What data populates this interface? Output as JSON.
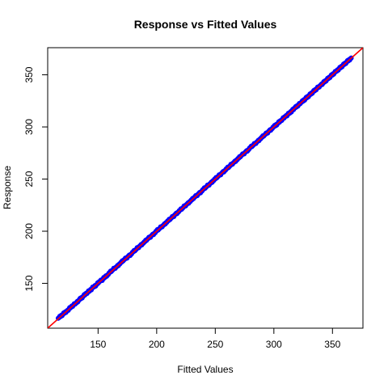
{
  "chart_data": {
    "type": "scatter",
    "title": "Response vs Fitted Values",
    "xlabel": "Fitted Values",
    "ylabel": "Response",
    "xlim": [
      107,
      376
    ],
    "ylim": [
      107,
      376
    ],
    "xticks": [
      150,
      200,
      250,
      300,
      350
    ],
    "yticks": [
      150,
      200,
      250,
      300,
      350
    ],
    "grid": false,
    "legend": "none",
    "series": [
      {
        "marker_color": "#0000ff",
        "points": [
          [
            116,
            116.5
          ],
          [
            124,
            124.2
          ],
          [
            127,
            127.4
          ],
          [
            131,
            131.0
          ],
          [
            134,
            134.3
          ],
          [
            137,
            137.2
          ],
          [
            140,
            140.5
          ],
          [
            143,
            143.1
          ],
          [
            146,
            146.4
          ],
          [
            149,
            149.0
          ],
          [
            151,
            151.6
          ],
          [
            153,
            152.8
          ],
          [
            156,
            156.3
          ],
          [
            158,
            158.0
          ],
          [
            160,
            160.4
          ],
          [
            162,
            162.3
          ],
          [
            164,
            164.5
          ],
          [
            166,
            166.1
          ],
          [
            168,
            168.4
          ],
          [
            170,
            170.2
          ],
          [
            172,
            172.5
          ],
          [
            174,
            174.1
          ],
          [
            176,
            176.3
          ],
          [
            178,
            177.9
          ],
          [
            180,
            180.2
          ],
          [
            182,
            182.0
          ],
          [
            184,
            184.3
          ],
          [
            186,
            186.1
          ],
          [
            188,
            188.2
          ],
          [
            190,
            190.0
          ],
          [
            192,
            192.3
          ],
          [
            194,
            194.1
          ],
          [
            196,
            196.2
          ],
          [
            198,
            198.0
          ],
          [
            200,
            200.3
          ],
          [
            202,
            202.1
          ],
          [
            204,
            204.2
          ],
          [
            206,
            206.0
          ],
          [
            208,
            208.3
          ],
          [
            210,
            210.1
          ],
          [
            212,
            212.2
          ],
          [
            214,
            214.0
          ],
          [
            216,
            216.3
          ],
          [
            218,
            218.1
          ],
          [
            220,
            220.2
          ],
          [
            222,
            222.0
          ],
          [
            224,
            224.3
          ],
          [
            226,
            226.1
          ],
          [
            228,
            228.2
          ],
          [
            230,
            230.0
          ],
          [
            232,
            232.3
          ],
          [
            234,
            234.1
          ],
          [
            236,
            236.2
          ],
          [
            238,
            238.0
          ],
          [
            240,
            240.3
          ],
          [
            242,
            242.1
          ],
          [
            244,
            244.2
          ],
          [
            246,
            246.0
          ],
          [
            248,
            248.3
          ],
          [
            250,
            250.1
          ],
          [
            252,
            252.2
          ],
          [
            254,
            254.0
          ],
          [
            256,
            256.3
          ],
          [
            258,
            258.1
          ],
          [
            260,
            260.2
          ],
          [
            262,
            262.0
          ],
          [
            264,
            264.3
          ],
          [
            266,
            266.1
          ],
          [
            268,
            268.2
          ],
          [
            270,
            270.0
          ],
          [
            272,
            272.3
          ],
          [
            274,
            274.1
          ],
          [
            276,
            276.2
          ],
          [
            278,
            278.0
          ],
          [
            280,
            280.3
          ],
          [
            282,
            282.1
          ],
          [
            284,
            284.2
          ],
          [
            286,
            286.0
          ],
          [
            288,
            288.3
          ],
          [
            290,
            290.1
          ],
          [
            292,
            292.2
          ],
          [
            294,
            294.0
          ],
          [
            296,
            296.3
          ],
          [
            298,
            298.1
          ],
          [
            300,
            300.2
          ],
          [
            303,
            303.0
          ],
          [
            306,
            306.2
          ],
          [
            310,
            310.1
          ],
          [
            313,
            313.0
          ],
          [
            318,
            318.2
          ],
          [
            323,
            323.1
          ],
          [
            338,
            338.2
          ],
          [
            340,
            340.1
          ],
          [
            353,
            353.2
          ],
          [
            366,
            366.1
          ]
        ]
      }
    ],
    "reference_line": {
      "slope": 1,
      "intercept": 0,
      "color": "#ff0000"
    }
  }
}
